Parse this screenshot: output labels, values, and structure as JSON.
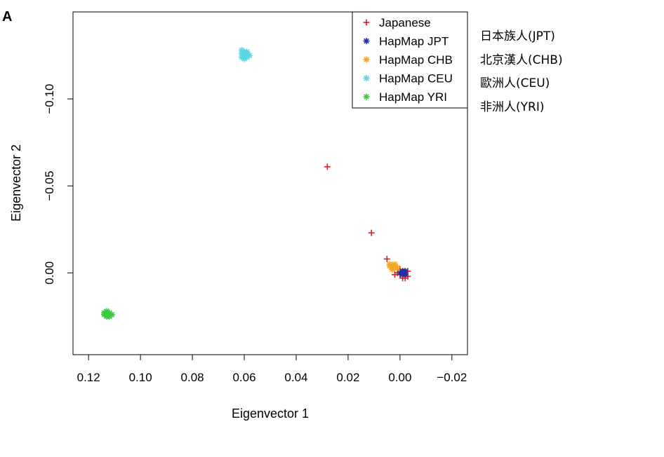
{
  "panel_label": "A",
  "chart_data": {
    "type": "scatter",
    "xlabel": "Eigenvector 1",
    "ylabel": "Eigenvector 2",
    "xlim": [
      0.126,
      -0.026
    ],
    "ylim": [
      0.047,
      -0.15
    ],
    "x_ticks": [
      0.12,
      0.1,
      0.08,
      0.06,
      0.04,
      0.02,
      0.0,
      -0.02
    ],
    "x_tick_labels": [
      "0.12",
      "0.10",
      "0.08",
      "0.06",
      "0.04",
      "0.02",
      "0.00",
      "−0.02"
    ],
    "y_ticks": [
      -0.1,
      -0.05,
      0.0
    ],
    "y_tick_labels": [
      "−0.10",
      "−0.05",
      "0.00"
    ],
    "legend": {
      "position": "top-right",
      "entries": [
        {
          "label": "Japanese",
          "symbol": "plus",
          "color": "#e31a1c"
        },
        {
          "label": "HapMap JPT",
          "symbol": "star",
          "color": "#1f2fa8"
        },
        {
          "label": "HapMap CHB",
          "symbol": "star",
          "color": "#f5a623"
        },
        {
          "label": "HapMap CEU",
          "symbol": "star",
          "color": "#5ad6e0"
        },
        {
          "label": "HapMap YRI",
          "symbol": "star",
          "color": "#3ec93e"
        }
      ]
    },
    "series": [
      {
        "name": "Japanese",
        "symbol": "plus",
        "color": "#e31a1c",
        "points": [
          [
            0.028,
            -0.061
          ],
          [
            0.011,
            -0.023
          ],
          [
            0.005,
            -0.008
          ],
          [
            0.002,
            0.001
          ],
          [
            0.003,
            -0.004
          ],
          [
            0.001,
            -0.003
          ],
          [
            0.0,
            -0.002
          ],
          [
            -0.001,
            0.0
          ],
          [
            -0.002,
            -0.001
          ],
          [
            -0.003,
            0.002
          ],
          [
            -0.001,
            0.003
          ],
          [
            0.0,
            0.001
          ],
          [
            -0.002,
            0.003
          ],
          [
            0.001,
            0.0
          ],
          [
            -0.003,
            -0.001
          ],
          [
            -0.002,
            0.001
          ]
        ]
      },
      {
        "name": "HapMap JPT",
        "symbol": "star",
        "color": "#1f2fa8",
        "points": [
          [
            -0.001,
            -0.001
          ],
          [
            -0.002,
            0.0
          ],
          [
            -0.001,
            0.001
          ],
          [
            -0.002,
            0.001
          ],
          [
            0.0,
            0.0
          ],
          [
            -0.001,
            0.0
          ],
          [
            -0.002,
            -0.001
          ]
        ]
      },
      {
        "name": "HapMap CHB",
        "symbol": "star",
        "color": "#f5a623",
        "points": [
          [
            0.004,
            -0.005
          ],
          [
            0.003,
            -0.004
          ],
          [
            0.002,
            -0.003
          ],
          [
            0.003,
            -0.002
          ],
          [
            0.004,
            -0.004
          ],
          [
            0.002,
            -0.005
          ],
          [
            0.001,
            -0.003
          ],
          [
            0.003,
            -0.003
          ]
        ]
      },
      {
        "name": "HapMap CEU",
        "symbol": "star",
        "color": "#5ad6e0",
        "points": [
          [
            0.061,
            -0.128
          ],
          [
            0.06,
            -0.127
          ],
          [
            0.059,
            -0.126
          ],
          [
            0.06,
            -0.125
          ],
          [
            0.061,
            -0.126
          ],
          [
            0.059,
            -0.124
          ],
          [
            0.058,
            -0.125
          ],
          [
            0.06,
            -0.123
          ],
          [
            0.061,
            -0.124
          ],
          [
            0.059,
            -0.127
          ]
        ]
      },
      {
        "name": "HapMap YRI",
        "symbol": "star",
        "color": "#3ec93e",
        "points": [
          [
            0.114,
            0.023
          ],
          [
            0.113,
            0.024
          ],
          [
            0.112,
            0.023
          ],
          [
            0.113,
            0.025
          ],
          [
            0.114,
            0.024
          ],
          [
            0.112,
            0.025
          ],
          [
            0.111,
            0.024
          ],
          [
            0.113,
            0.022
          ]
        ]
      }
    ]
  },
  "population_labels": [
    "日本族人(JPT)",
    "北京漢人(CHB)",
    "歐洲人(CEU)",
    "非洲人(YRI)"
  ]
}
